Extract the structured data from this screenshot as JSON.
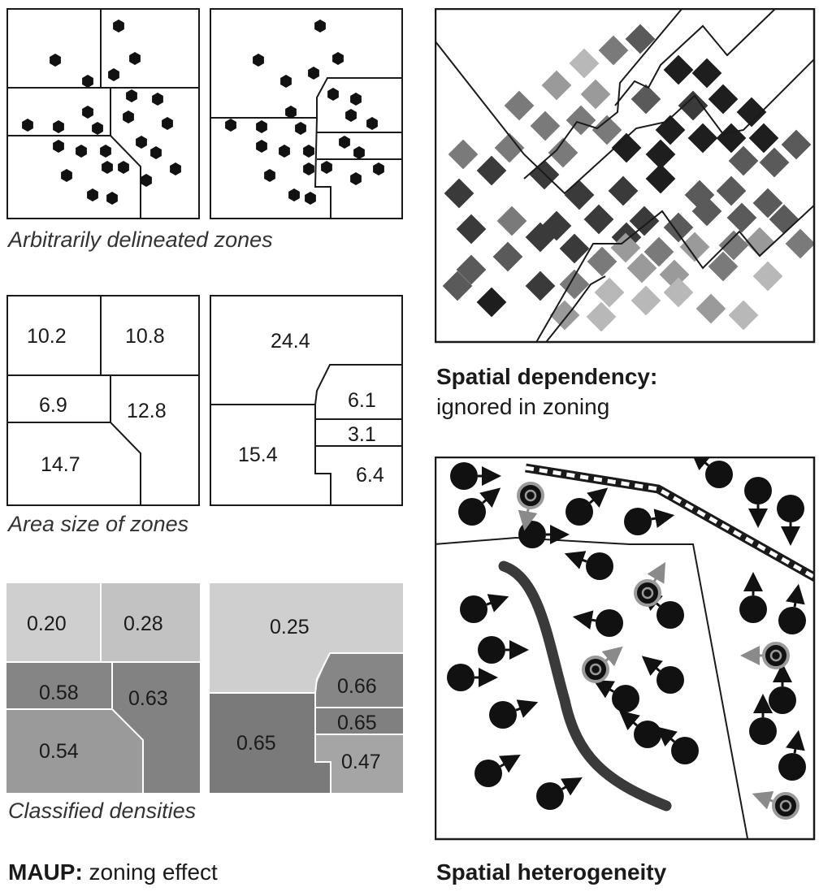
{
  "colors": {
    "outline": "#1a1a1a",
    "dot": "#111111",
    "diamond_shades": [
      "#1e1e1e",
      "#3a3a3a",
      "#5a5a5a",
      "#7a7a7a",
      "#9a9a9a",
      "#b8b8b8"
    ],
    "density_light": "#cfcfcf",
    "density_mid": "#a8a8a8",
    "density_dark": "#7c7c7c",
    "river": "#3a3a3a",
    "arrow_grey": "#8a8a8a"
  },
  "captions": {
    "arbitrary": "Arbitrarily delineated zones",
    "area_size": "Area size of zones",
    "classified": "Classified densities",
    "maup_bold": "MAUP:",
    "maup_rest": " zoning effect",
    "dependency_bold": "Spatial dependency:",
    "dependency_rest": "ignored in zoning",
    "heterogeneity": "Spatial heterogeneity"
  },
  "area_left": {
    "a": "10.2",
    "b": "10.8",
    "c": "6.9",
    "d": "12.8",
    "e": "14.7"
  },
  "area_right": {
    "a": "24.4",
    "b": "6.1",
    "c": "3.1",
    "d": "15.4",
    "e": "6.4"
  },
  "density_left": {
    "a": "0.20",
    "b": "0.28",
    "c": "0.58",
    "d": "0.63",
    "e": "0.54"
  },
  "density_right": {
    "a": "0.25",
    "b": "0.66",
    "c": "0.65",
    "d": "0.65",
    "e": "0.47"
  }
}
